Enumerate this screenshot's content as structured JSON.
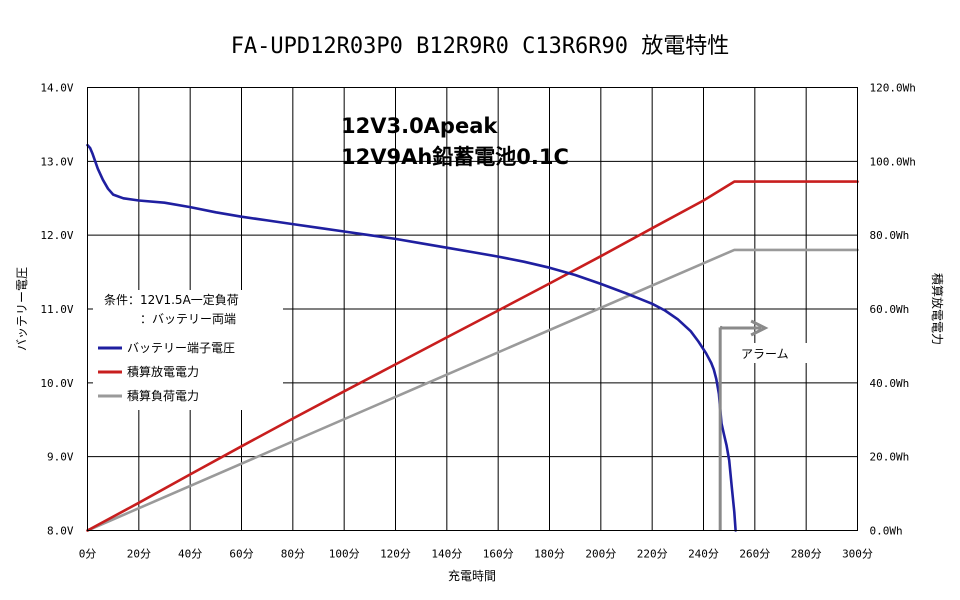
{
  "chart_data": {
    "type": "line",
    "title": "FA-UPD12R03P0 B12R9R0 C13R6R90 放電特性",
    "xlabel": "充電時間",
    "ylabel_left": "バッテリー電圧",
    "ylabel_right": "積算放電電力",
    "xlim": [
      0,
      300
    ],
    "ylim_left": [
      8.0,
      14.0
    ],
    "ylim_right": [
      0,
      120
    ],
    "x_ticks": [
      "0分",
      "20分",
      "40分",
      "60分",
      "80分",
      "100分",
      "120分",
      "140分",
      "160分",
      "180分",
      "200分",
      "220分",
      "240分",
      "260分",
      "280分",
      "300分"
    ],
    "y_ticks_left": [
      "8.0V",
      "9.0V",
      "10.0V",
      "11.0V",
      "12.0V",
      "13.0V",
      "14.0V"
    ],
    "y_ticks_right": [
      "0.0Wh",
      "20.0Wh",
      "40.0Wh",
      "60.0Wh",
      "80.0Wh",
      "100.0Wh",
      "120.0Wh"
    ],
    "grid": true,
    "annotations": {
      "spec_line1": "12V3.0Apeak",
      "spec_line2": "12V9Ah鉛蓄電池0.1C",
      "condition_line1": "条件：12V1.5A一定負荷",
      "condition_line2": "：バッテリー両端",
      "alarm": "アラーム"
    },
    "series": [
      {
        "name": "バッテリー端子電圧",
        "axis": "left",
        "color": "#1f1fa0",
        "x": [
          0,
          1,
          2,
          3,
          4,
          6,
          8,
          10,
          14,
          20,
          30,
          40,
          50,
          60,
          70,
          80,
          90,
          100,
          110,
          120,
          130,
          140,
          150,
          160,
          170,
          180,
          190,
          200,
          210,
          220,
          225,
          230,
          235,
          238,
          241,
          243,
          244,
          245,
          246,
          246.5,
          247,
          248,
          249,
          250,
          251,
          252,
          252.5
        ],
        "y": [
          13.22,
          13.18,
          13.1,
          13.0,
          12.9,
          12.75,
          12.63,
          12.55,
          12.5,
          12.47,
          12.44,
          12.38,
          12.31,
          12.25,
          12.2,
          12.15,
          12.1,
          12.05,
          12.0,
          11.95,
          11.89,
          11.83,
          11.77,
          11.71,
          11.64,
          11.56,
          11.46,
          11.34,
          11.21,
          11.07,
          10.98,
          10.86,
          10.7,
          10.56,
          10.4,
          10.27,
          10.18,
          10.05,
          9.85,
          9.65,
          9.45,
          9.3,
          9.15,
          8.95,
          8.6,
          8.25,
          8.0
        ]
      },
      {
        "name": "積算放電電力",
        "axis": "right",
        "color": "#c81e1e",
        "x": [
          0,
          20,
          40,
          60,
          80,
          100,
          120,
          140,
          160,
          180,
          200,
          220,
          240,
          252,
          300
        ],
        "y": [
          0,
          7.5,
          15.2,
          22.8,
          30.3,
          37.7,
          45.0,
          52.3,
          59.6,
          66.9,
          74.3,
          81.9,
          89.4,
          94.5,
          94.5
        ]
      },
      {
        "name": "積算負荷電力",
        "axis": "right",
        "color": "#9a9a9a",
        "x": [
          0,
          252,
          300
        ],
        "y": [
          0,
          76.0,
          76.0
        ]
      }
    ],
    "alarm_marker": {
      "x": 246.5,
      "y_from": 0,
      "y_to": 10.75,
      "arrow_to_x": 264,
      "color": "#8a8a8a"
    }
  }
}
